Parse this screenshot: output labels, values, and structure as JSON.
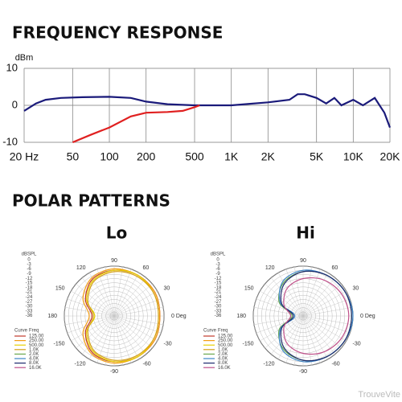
{
  "heading": "POLAR PATTERNS",
  "watermark": "TrouveVite",
  "chart_data": [
    {
      "type": "line",
      "title": "FREQUENCY RESPONSE",
      "y_label": "dBm",
      "xscale": "log",
      "grid": true,
      "xlim": [
        20,
        20000
      ],
      "ylim": [
        -10,
        10
      ],
      "yticks": [
        -10,
        0,
        10
      ],
      "xticks": [
        {
          "value": 20,
          "label": "20 Hz"
        },
        50,
        100,
        200,
        500,
        {
          "value": 1000,
          "label": "1K"
        },
        {
          "value": 2000,
          "label": "2K"
        },
        {
          "value": 5000,
          "label": "5K"
        },
        {
          "value": 10000,
          "label": "10K"
        },
        {
          "value": 20000,
          "label": "20K"
        }
      ],
      "series": [
        {
          "color": "#1a1a7a",
          "x": [
            20,
            25,
            30,
            40,
            60,
            100,
            150,
            200,
            300,
            500,
            1000,
            2000,
            3000,
            3500,
            4000,
            5000,
            6000,
            7000,
            8000,
            10000,
            12000,
            15000,
            18000,
            20000
          ],
          "values": [
            -1.5,
            0.5,
            1.5,
            2,
            2.2,
            2.3,
            2,
            1,
            0.3,
            0,
            0,
            0.8,
            1.5,
            3,
            3,
            2,
            0.5,
            2,
            0,
            1.5,
            0,
            2,
            -2,
            -6
          ]
        },
        {
          "color": "#e02020",
          "x": [
            50,
            70,
            100,
            150,
            200,
            300,
            400,
            500,
            550
          ],
          "values": [
            -10,
            -8,
            -6,
            -3,
            -2,
            -1.8,
            -1.5,
            -0.5,
            0
          ]
        }
      ]
    },
    {
      "type": "polar",
      "title": "Lo",
      "r_label": "dBSPL",
      "legend_columns": [
        "Curve",
        "Freq"
      ],
      "rlim": [
        -36,
        0
      ],
      "rticks": [
        0,
        -3,
        -6,
        -9,
        -12,
        -15,
        -18,
        -21,
        -24,
        -27,
        -30,
        -33,
        -36
      ],
      "angle_ticks": [
        {
          "value": 0,
          "label": "0 Deg"
        },
        30,
        60,
        90,
        120,
        150,
        180,
        -150,
        -120,
        -90,
        -60,
        -30
      ],
      "angles": [
        0,
        30,
        60,
        90,
        120,
        150,
        180,
        -150,
        -120,
        -90,
        -60,
        -30
      ],
      "series": [
        {
          "name": "125.00",
          "color": "#c0392b",
          "values": [
            -3,
            -2,
            -2,
            -3,
            -5,
            -12,
            -20,
            -12,
            -5,
            -3,
            -2,
            -2
          ]
        },
        {
          "name": "250.00",
          "color": "#f39c12",
          "values": [
            -3,
            -2,
            -2,
            -2,
            -4,
            -10,
            -18,
            -10,
            -4,
            -2,
            -2,
            -2
          ]
        },
        {
          "name": "500.00",
          "color": "#e8d000",
          "values": [
            -4,
            -3,
            -2,
            -3,
            -6,
            -13,
            -22,
            -13,
            -6,
            -3,
            -2,
            -3
          ]
        },
        {
          "name": "1.0K",
          "color": "#d4a017",
          "values": [
            -4,
            -3,
            -3,
            -4,
            -7,
            -14,
            -21,
            -14,
            -7,
            -4,
            -3,
            -3
          ]
        },
        {
          "name": "2.0K",
          "color": "#6aa84f"
        },
        {
          "name": "4.0K",
          "color": "#3d85c6"
        },
        {
          "name": "8.0K",
          "color": "#1c2a6e"
        },
        {
          "name": "16.0K",
          "color": "#c0508a"
        }
      ]
    },
    {
      "type": "polar",
      "title": "Hi",
      "r_label": "dBSPL",
      "legend_columns": [
        "Curve",
        "Freq"
      ],
      "rlim": [
        -36,
        0
      ],
      "rticks": [
        0,
        -3,
        -6,
        -9,
        -12,
        -15,
        -18,
        -21,
        -24,
        -27,
        -30,
        -33,
        -36
      ],
      "angle_ticks": [
        {
          "value": 0,
          "label": "0 Deg"
        },
        30,
        60,
        90,
        120,
        150,
        180,
        -150,
        -120,
        -90,
        -60,
        -30
      ],
      "angles": [
        0,
        30,
        60,
        90,
        120,
        150,
        180,
        -150,
        -120,
        -90,
        -60,
        -30
      ],
      "series": [
        {
          "name": "125.00",
          "color": "#c0392b"
        },
        {
          "name": "250.00",
          "color": "#f39c12"
        },
        {
          "name": "500.00",
          "color": "#e8d000"
        },
        {
          "name": "1.0K",
          "color": "#d4a017"
        },
        {
          "name": "2.0K",
          "color": "#6aa84f",
          "values": [
            -1,
            -1,
            -2,
            -4,
            -8,
            -16,
            -28,
            -16,
            -8,
            -4,
            -2,
            -1
          ]
        },
        {
          "name": "4.0K",
          "color": "#3d85c6",
          "values": [
            0,
            -1,
            -2,
            -3,
            -7,
            -17,
            -30,
            -17,
            -7,
            -3,
            -2,
            -1
          ]
        },
        {
          "name": "8.0K",
          "color": "#1c2a6e",
          "values": [
            -1,
            -1,
            -2,
            -4,
            -9,
            -18,
            -29,
            -18,
            -9,
            -4,
            -2,
            -1
          ]
        },
        {
          "name": "16.0K",
          "color": "#c0508a",
          "values": [
            -3,
            -4,
            -6,
            -9,
            -13,
            -20,
            -27,
            -20,
            -13,
            -9,
            -6,
            -4
          ]
        }
      ]
    }
  ]
}
